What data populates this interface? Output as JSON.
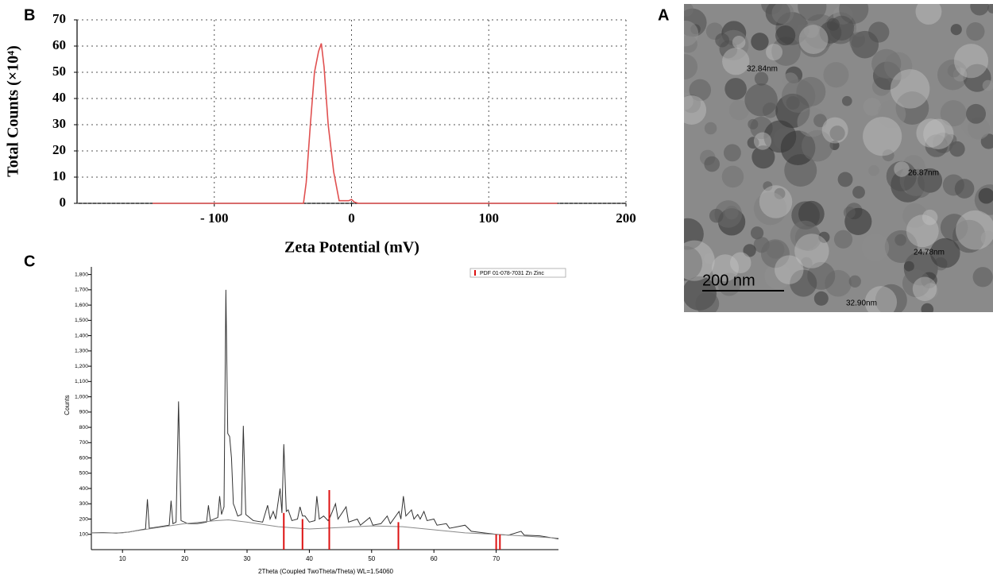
{
  "chart_data": [
    {
      "type": "line",
      "panel": "B",
      "ylabel": "Total Counts (×10⁴)",
      "xlabel": "Zeta Potential (mV)",
      "xlim": [
        -200,
        200
      ],
      "xticks": [
        {
          "value": -100,
          "label": "- 100"
        },
        0,
        100,
        200
      ],
      "ylim": [
        0,
        70
      ],
      "yticks": [
        0,
        10,
        20,
        30,
        40,
        50,
        60,
        70
      ],
      "grid": true,
      "series": [
        {
          "color": "#e05050",
          "x": [
            -145,
            -40,
            -35,
            -33,
            -30,
            -27,
            -24,
            -22,
            -20,
            -17,
            -13,
            -9,
            -5,
            -2,
            0,
            2,
            5,
            150
          ],
          "values": [
            0,
            0,
            0,
            8,
            30,
            50,
            58,
            61,
            52,
            30,
            12,
            1,
            1,
            1,
            1.5,
            0.5,
            0,
            0
          ]
        }
      ]
    },
    {
      "type": "line",
      "panel": "C",
      "ylabel": "Counts",
      "xlabel": "2Theta (Coupled TwoTheta/Theta) WL=1.54060",
      "xlim": [
        5,
        80
      ],
      "xticks": [
        10,
        20,
        30,
        40,
        50,
        60,
        70
      ],
      "ylim": [
        0,
        1850
      ],
      "yticks": [
        100,
        200,
        300,
        400,
        500,
        600,
        700,
        800,
        900,
        {
          "value": 1000,
          "label": "1,000"
        },
        {
          "value": 1100,
          "label": "1,100"
        },
        {
          "value": 1200,
          "label": "1,200"
        },
        {
          "value": 1300,
          "label": "1,300"
        },
        {
          "value": 1400,
          "label": "1,400"
        },
        {
          "value": 1500,
          "label": "1,500"
        },
        {
          "value": 1600,
          "label": "1,600"
        },
        {
          "value": 1700,
          "label": "1,700"
        },
        {
          "value": 1800,
          "label": "1,800"
        }
      ],
      "grid": false,
      "legend": "top-right",
      "series": [
        {
          "color": "#333333",
          "x": [
            5,
            7,
            9,
            11,
            13,
            13.7,
            14,
            14.3,
            16,
            17.5,
            17.8,
            18.1,
            18.6,
            19,
            19.4,
            20.5,
            22,
            23.5,
            23.8,
            24.1,
            25.3,
            25.6,
            25.9,
            26.3,
            26.6,
            26.9,
            27.2,
            27.5,
            27.8,
            28,
            28.5,
            29.1,
            29.4,
            29.8,
            31,
            32.5,
            33.3,
            33.7,
            34.2,
            34.6,
            35.3,
            35.6,
            35.9,
            36.3,
            36.6,
            37.2,
            38.1,
            38.5,
            38.9,
            39.3,
            40,
            40.9,
            41.2,
            41.6,
            42.3,
            43,
            43.3,
            44.2,
            44.6,
            45.9,
            46.3,
            47.7,
            48.2,
            49.7,
            50.2,
            51.5,
            52.5,
            53,
            54.4,
            54.7,
            55.1,
            55.5,
            56.4,
            56.8,
            57.4,
            57.8,
            58.4,
            58.9,
            60,
            60.5,
            62,
            62.5,
            63.8,
            65,
            66,
            68,
            70,
            72,
            74,
            74.5,
            77,
            80
          ],
          "values": [
            110,
            112,
            108,
            115,
            130,
            135,
            330,
            140,
            150,
            160,
            320,
            170,
            180,
            970,
            190,
            170,
            170,
            180,
            290,
            190,
            210,
            350,
            230,
            280,
            1700,
            760,
            740,
            600,
            300,
            280,
            220,
            230,
            810,
            230,
            190,
            180,
            290,
            200,
            250,
            200,
            400,
            240,
            690,
            250,
            260,
            190,
            200,
            280,
            220,
            220,
            180,
            190,
            350,
            200,
            220,
            190,
            210,
            300,
            200,
            280,
            180,
            200,
            160,
            210,
            160,
            170,
            220,
            170,
            250,
            200,
            350,
            220,
            260,
            200,
            230,
            200,
            250,
            190,
            200,
            160,
            170,
            140,
            150,
            160,
            120,
            110,
            100,
            95,
            120,
            95,
            90,
            70
          ]
        },
        {
          "color": "#888888",
          "x": [
            5,
            10,
            15,
            20,
            25,
            27,
            30,
            35,
            40,
            45,
            50,
            55,
            60,
            65,
            70,
            75,
            80
          ],
          "values": [
            110,
            110,
            140,
            170,
            190,
            195,
            180,
            150,
            135,
            145,
            155,
            150,
            130,
            110,
            100,
            88,
            75
          ]
        },
        {
          "name": "PDF 01-078-7031 Zn Zinc",
          "color": "#dd1111",
          "kind": "stick",
          "x": [
            35.9,
            38.9,
            43.2,
            54.3,
            70,
            70.6
          ],
          "values": [
            240,
            200,
            390,
            180,
            100,
            100
          ]
        }
      ]
    }
  ],
  "image_panel": {
    "panel": "A",
    "scale_bar": "200 nm",
    "annotations": [
      "32.84nm",
      "26.87nm",
      "24.78nm",
      "32.90nm"
    ]
  }
}
